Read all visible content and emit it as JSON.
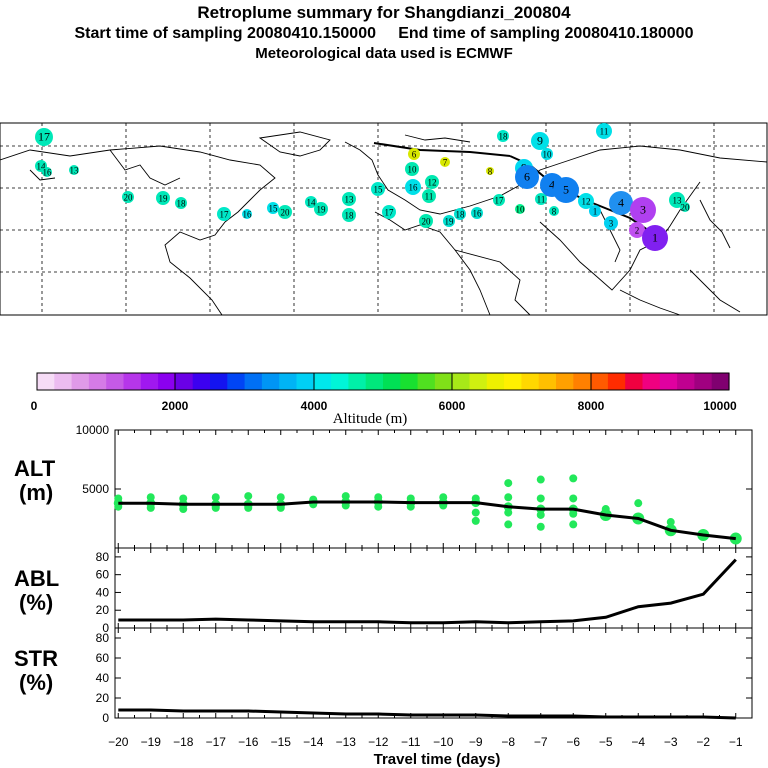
{
  "header": {
    "title": "Retroplume summary for Shangdianzi_200804",
    "sampling": "Start time of sampling 20080410.150000     End time of sampling 20080410.180000",
    "met": "Meteorological data used is ECMWF"
  },
  "colorbar": {
    "ticks": [
      "0",
      "2000",
      "4000",
      "6000",
      "8000",
      "10000"
    ],
    "label": "Altitude (m)",
    "colors": [
      "#f6dcf6",
      "#ecbcf0",
      "#e09ae8",
      "#d57be6",
      "#c55ae6",
      "#b636ea",
      "#a018ef",
      "#8b00ef",
      "#6a00e6",
      "#3c00f0",
      "#1414f0",
      "#0045f5",
      "#0070f5",
      "#0095f5",
      "#00b4f5",
      "#00d0f5",
      "#00e8ec",
      "#00f5d8",
      "#00f0a8",
      "#00e87c",
      "#00e055",
      "#18e030",
      "#50e020",
      "#80e018",
      "#a8e818",
      "#d0f010",
      "#eef000",
      "#fff000",
      "#ffd800",
      "#ffc000",
      "#ffa000",
      "#ff8000",
      "#ff5a00",
      "#ff2c00",
      "#f00040",
      "#f00080",
      "#e000a0",
      "#c00090",
      "#a00080",
      "#800070"
    ]
  },
  "map": {
    "markers": [
      {
        "label": "17",
        "color": "#00e8b8"
      },
      {
        "label": "14",
        "color": "#00e8b8"
      },
      {
        "label": "16",
        "color": "#00e8b8"
      },
      {
        "label": "13",
        "color": "#00e8b8"
      },
      {
        "label": "20",
        "color": "#00e8b8"
      },
      {
        "label": "19",
        "color": "#00e8b8"
      },
      {
        "label": "18",
        "color": "#00e8b8"
      },
      {
        "label": "17",
        "color": "#00e8c8"
      },
      {
        "label": "16",
        "color": "#00e0e8"
      },
      {
        "label": "15",
        "color": "#00e0e8"
      },
      {
        "label": "20",
        "color": "#00e8b8"
      },
      {
        "label": "14",
        "color": "#00e8c0"
      },
      {
        "label": "19",
        "color": "#00e8b8"
      },
      {
        "label": "13",
        "color": "#00e8b8"
      },
      {
        "label": "18",
        "color": "#00e8b8"
      },
      {
        "label": "15",
        "color": "#00e8c8"
      },
      {
        "label": "17",
        "color": "#00e8c8"
      },
      {
        "label": "16",
        "color": "#00e0e8"
      },
      {
        "label": "10",
        "color": "#00e8b0"
      },
      {
        "label": "20",
        "color": "#00e8b0"
      },
      {
        "label": "11",
        "color": "#00e8b0"
      },
      {
        "label": "12",
        "color": "#00e8b0"
      },
      {
        "label": "19",
        "color": "#00e0d0"
      },
      {
        "label": "18",
        "color": "#00e0d0"
      },
      {
        "label": "16",
        "color": "#00e0d0"
      },
      {
        "label": "17",
        "color": "#00e8b8"
      },
      {
        "label": "10",
        "color": "#00f08c"
      },
      {
        "label": "11",
        "color": "#00e8c0"
      },
      {
        "label": "8",
        "color": "#00e8c0"
      },
      {
        "label": "9",
        "color": "#00e0e8"
      },
      {
        "label": "10",
        "color": "#00e0e8"
      },
      {
        "label": "11",
        "color": "#00e0e8"
      },
      {
        "label": "18",
        "color": "#00e8c8"
      },
      {
        "label": "9",
        "color": "#00d8f0"
      },
      {
        "label": "12",
        "color": "#00e0e8"
      },
      {
        "label": "6",
        "color": "#1080f0"
      },
      {
        "label": "4",
        "color": "#1080f0"
      },
      {
        "label": "5",
        "color": "#1080f0"
      },
      {
        "label": "1",
        "color": "#00d0f0"
      },
      {
        "label": "3",
        "color": "#00d0f0"
      },
      {
        "label": "4",
        "color": "#2090f0"
      },
      {
        "label": "3",
        "color": "#b040f0"
      },
      {
        "label": "2",
        "color": "#c050f0"
      },
      {
        "label": "1",
        "color": "#8020f0"
      },
      {
        "label": "13",
        "color": "#00e8b8"
      },
      {
        "label": "20",
        "color": "#00e8b8"
      },
      {
        "label": "6",
        "color": "#d8e800"
      },
      {
        "label": "7",
        "color": "#d8e800"
      },
      {
        "label": "8",
        "color": "#d8e800"
      }
    ]
  },
  "chart_data": [
    {
      "type": "scatter+line",
      "panel": "ALT",
      "ylabel": "ALT\n(m)",
      "y_tick_labels": [
        "5000",
        "10000"
      ],
      "ylim": [
        0,
        10000
      ],
      "x": [
        -20,
        -19,
        -18,
        -17,
        -16,
        -15,
        -14,
        -13,
        -12,
        -11,
        -10,
        -9,
        -8,
        -7,
        -6,
        -5,
        -4,
        -3,
        -2,
        -1
      ],
      "values": [
        3800,
        3800,
        3700,
        3700,
        3700,
        3700,
        3900,
        3900,
        3900,
        3850,
        3850,
        3850,
        3500,
        3300,
        3300,
        2800,
        2500,
        1500,
        1100,
        800
      ],
      "spread_points": [
        {
          "x": -20,
          "y": [
            4200,
            3500
          ]
        },
        {
          "x": -19,
          "y": [
            4300,
            3400
          ]
        },
        {
          "x": -18,
          "y": [
            4200,
            3300
          ]
        },
        {
          "x": -17,
          "y": [
            4300,
            3400
          ]
        },
        {
          "x": -16,
          "y": [
            4400,
            3400
          ]
        },
        {
          "x": -15,
          "y": [
            4300,
            3400
          ]
        },
        {
          "x": -14,
          "y": [
            4100,
            3700
          ]
        },
        {
          "x": -13,
          "y": [
            4400,
            3600
          ]
        },
        {
          "x": -12,
          "y": [
            4300,
            3500
          ]
        },
        {
          "x": -11,
          "y": [
            4200,
            3500
          ]
        },
        {
          "x": -10,
          "y": [
            4300,
            3600
          ]
        },
        {
          "x": -9,
          "y": [
            4200,
            3000,
            2300
          ]
        },
        {
          "x": -8,
          "y": [
            5500,
            4300,
            3000,
            2000
          ]
        },
        {
          "x": -7,
          "y": [
            5800,
            4200,
            2800,
            1800
          ]
        },
        {
          "x": -6,
          "y": [
            5900,
            4200,
            2900,
            2000
          ]
        },
        {
          "x": -5,
          "y": [
            3300,
            2800
          ]
        },
        {
          "x": -4,
          "y": [
            3800,
            2400
          ]
        },
        {
          "x": -3,
          "y": [
            2200,
            1400
          ]
        },
        {
          "x": -2,
          "y": [
            1200
          ]
        },
        {
          "x": -1,
          "y": [
            800
          ]
        }
      ]
    },
    {
      "type": "line",
      "panel": "ABL",
      "ylabel": "ABL\n(%)",
      "y_tick_labels": [
        "0",
        "20",
        "40",
        "60",
        "80"
      ],
      "ylim": [
        0,
        90
      ],
      "x": [
        -20,
        -19,
        -18,
        -17,
        -16,
        -15,
        -14,
        -13,
        -12,
        -11,
        -10,
        -9,
        -8,
        -7,
        -6,
        -5,
        -4,
        -3,
        -2,
        -1
      ],
      "values": [
        9,
        9,
        9,
        10,
        9,
        8,
        7,
        7,
        7,
        6,
        6,
        7,
        6,
        7,
        8,
        12,
        24,
        28,
        38,
        77
      ]
    },
    {
      "type": "line",
      "panel": "STR",
      "ylabel": "STR\n(%)",
      "y_tick_labels": [
        "0",
        "20",
        "40",
        "60",
        "80"
      ],
      "ylim": [
        0,
        90
      ],
      "x": [
        -20,
        -19,
        -18,
        -17,
        -16,
        -15,
        -14,
        -13,
        -12,
        -11,
        -10,
        -9,
        -8,
        -7,
        -6,
        -5,
        -4,
        -3,
        -2,
        -1
      ],
      "values": [
        8,
        8,
        7,
        7,
        7,
        6,
        5,
        4,
        4,
        3,
        3,
        3,
        2,
        2,
        2,
        1,
        1,
        1,
        1,
        0
      ]
    }
  ],
  "xaxis": {
    "title": "Travel time (days)",
    "tick_labels": [
      "−20",
      "−19",
      "−18",
      "−17",
      "−16",
      "−15",
      "−14",
      "−13",
      "−12",
      "−11",
      "−10",
      "−9",
      "−8",
      "−7",
      "−6",
      "−5",
      "−4",
      "−3",
      "−2",
      "−1"
    ]
  }
}
